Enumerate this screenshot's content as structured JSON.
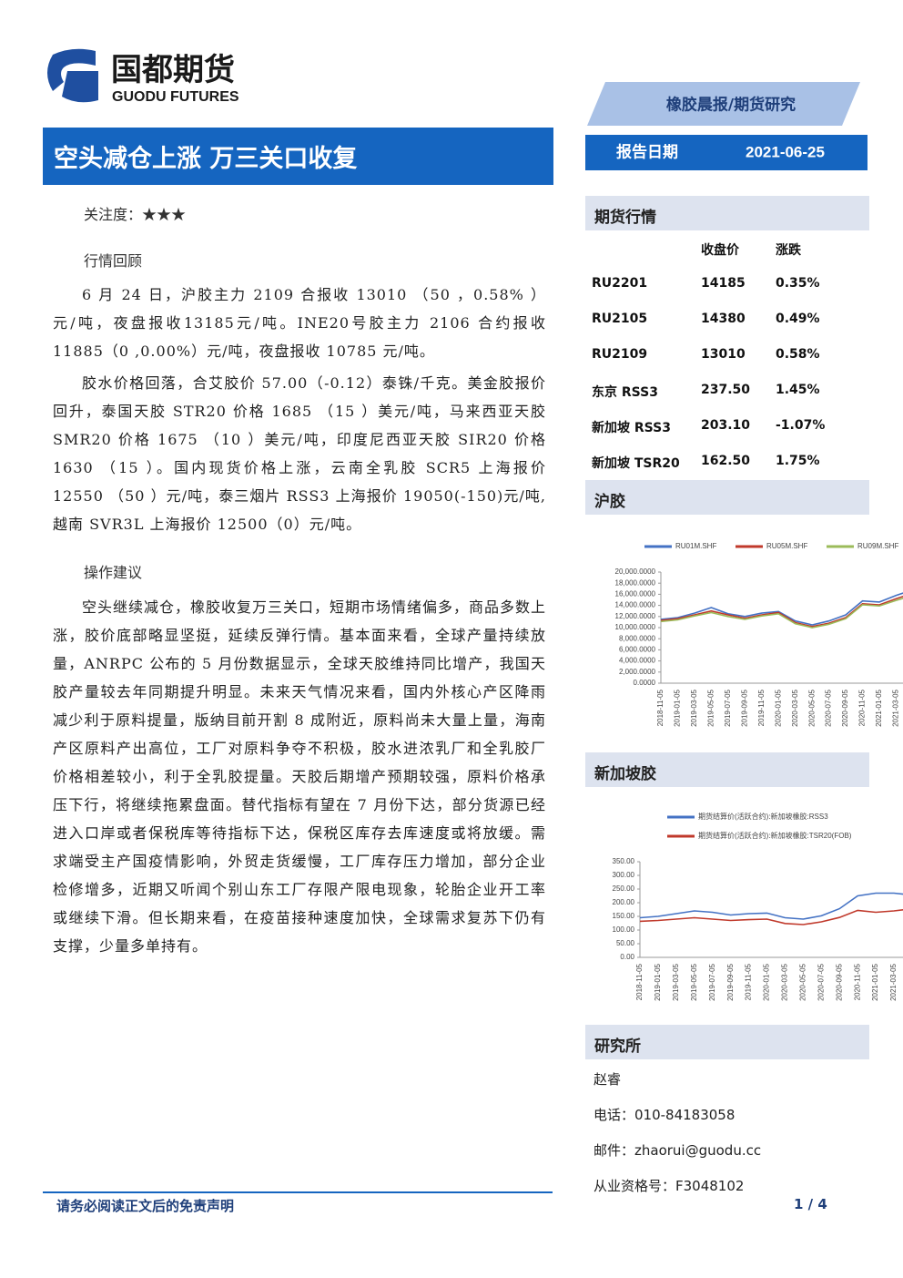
{
  "header": {
    "logo_cn": "国都期货",
    "logo_en": "GUODU FUTURES",
    "category": "橡胶晨报/期货研究",
    "date_label": "报告日期",
    "date": "2021-06-25"
  },
  "title": "空头减仓上涨 万三关口收复",
  "attention": "关注度：★★★",
  "review": {
    "heading": "行情回顾",
    "paragraphs": [
      "6 月 24 日，沪胶主力 2109 合报收 13010 （50 ，0.58% ）元/吨，夜盘报收13185元/吨。INE20号胶主力 2106 合约报收 11885（0 ,0.00%）元/吨，夜盘报收 10785 元/吨。",
      "胶水价格回落，合艾胶价 57.00（-0.12）泰铢/千克。美金胶报价回升，泰国天胶 STR20 价格 1685 （15 ）美元/吨，马来西亚天胶 SMR20 价格 1675 （10 ）美元/吨，印度尼西亚天胶 SIR20 价格 1630 （15 ）。国内现货价格上涨，云南全乳胶 SCR5 上海报价 12550 （50 ）元/吨，泰三烟片 RSS3 上海报价 19050(-150)元/吨,越南 SVR3L 上海报价 12500（0）元/吨。"
    ]
  },
  "advice": {
    "heading": "操作建议",
    "paragraphs": [
      "空头继续减仓，橡胶收复万三关口，短期市场情绪偏多，商品多数上涨，胶价底部略显坚挺，延续反弹行情。基本面来看，全球产量持续放量，ANRPC 公布的 5 月份数据显示，全球天胶维持同比增产，我国天胶产量较去年同期提升明显。未来天气情况来看，国内外核心产区降雨减少利于原料提量，版纳目前开割 8 成附近，原料尚未大量上量，海南产区原料产出高位，工厂对原料争夺不积极，胶水进浓乳厂和全乳胶厂价格相差较小，利于全乳胶提量。天胶后期增产预期较强，原料价格承压下行，将继续拖累盘面。替代指标有望在 7 月份下达，部分货源已经进入口岸或者保税库等待指标下达，保税区库存去库速度或将放缓。需求端受主产国疫情影响，外贸走货缓慢，工厂库存压力增加，部分企业检修增多，近期又听闻个别山东工厂存限产限电现象，轮胎企业开工率或继续下滑。但长期来看，在疫苗接种速度加快，全球需求复苏下仍有支撑，少量多单持有。"
    ]
  },
  "market": {
    "title": "期货行情",
    "columns": [
      "收盘价",
      "涨跌"
    ],
    "rows": [
      [
        "RU2201",
        "14185",
        "0.35%"
      ],
      [
        "RU2105",
        "14380",
        "0.49%"
      ],
      [
        "RU2109",
        "13010",
        "0.58%"
      ],
      [
        "东京 RSS3",
        "237.50",
        "1.45%"
      ],
      [
        "新加坡 RSS3",
        "203.10",
        "-1.07%"
      ],
      [
        "新加坡 TSR20",
        "162.50",
        "1.75%"
      ]
    ]
  },
  "shfe_label": "沪胶",
  "sgx_label": "新加坡胶",
  "chart_data": [
    {
      "type": "line",
      "categories": [
        "2018-11-05",
        "2019-01-05",
        "2019-03-05",
        "2019-05-05",
        "2019-07-05",
        "2019-09-05",
        "2019-11-05",
        "2020-01-05",
        "2020-03-05",
        "2020-05-05",
        "2020-07-05",
        "2020-09-05",
        "2020-11-05",
        "2021-01-05",
        "2021-03-05",
        null
      ],
      "series": [
        {
          "name": "RU01M.SHF",
          "color": "#4472c4",
          "values": [
            11500,
            11800,
            12600,
            13600,
            12500,
            12000,
            12600,
            12900,
            11200,
            10500,
            11200,
            12300,
            14800,
            14600,
            15800,
            16800
          ]
        },
        {
          "name": "RU05M.SHF",
          "color": "#c0392b",
          "values": [
            11300,
            11600,
            12300,
            13000,
            12300,
            11700,
            12300,
            12700,
            10900,
            10200,
            10800,
            11800,
            14300,
            14100,
            15200,
            16200
          ]
        },
        {
          "name": "RU09M.SHF",
          "color": "#9bbb59",
          "values": [
            11100,
            11400,
            12100,
            12700,
            12000,
            11500,
            12100,
            12500,
            10700,
            10000,
            10600,
            11600,
            14100,
            13900,
            14900,
            15800
          ]
        }
      ],
      "ylim": [
        0,
        20000
      ],
      "yticks": [
        {
          "value": 0,
          "label": "0.0000"
        },
        {
          "value": 2000,
          "label": "2,000.0000"
        },
        {
          "value": 4000,
          "label": "4,000.0000"
        },
        {
          "value": 6000,
          "label": "6,000.0000"
        },
        {
          "value": 8000,
          "label": "8,000.0000"
        },
        {
          "value": 10000,
          "label": "10,000.0000"
        },
        {
          "value": 12000,
          "label": "12,000.0000"
        },
        {
          "value": 14000,
          "label": "14,000.0000"
        },
        {
          "value": 16000,
          "label": "16,000.0000"
        },
        {
          "value": 18000,
          "label": "18,000.0000"
        },
        {
          "value": 20000,
          "label": "20,000.0000"
        }
      ]
    },
    {
      "type": "line",
      "categories": [
        "2018-11-05",
        "2019-01-05",
        "2019-03-05",
        "2019-05-05",
        "2019-07-05",
        "2019-09-05",
        "2019-11-05",
        "2020-01-05",
        "2020-03-05",
        "2020-05-05",
        "2020-07-05",
        "2020-09-05",
        "2020-11-05",
        "2021-01-05",
        "2021-03-05",
        null
      ],
      "series": [
        {
          "name": "期货结算价(活跃合约):新加坡橡胶:RSS3",
          "color": "#4472c4",
          "values": [
            145,
            150,
            160,
            170,
            165,
            155,
            160,
            162,
            145,
            140,
            152,
            178,
            225,
            235,
            235,
            228
          ]
        },
        {
          "name": "期货结算价(活跃合约):新加坡橡胶:TSR20(FOB)",
          "color": "#c0392b",
          "values": [
            132,
            135,
            140,
            145,
            140,
            135,
            138,
            140,
            124,
            120,
            130,
            146,
            172,
            165,
            170,
            178
          ]
        }
      ],
      "ylim": [
        0,
        350
      ],
      "yticks": [
        {
          "value": 0,
          "label": "0.00"
        },
        {
          "value": 50,
          "label": "50.00"
        },
        {
          "value": 100,
          "label": "100.00"
        },
        {
          "value": 150,
          "label": "150.00"
        },
        {
          "value": 200,
          "label": "200.00"
        },
        {
          "value": 250,
          "label": "250.00"
        },
        {
          "value": 300,
          "label": "300.00"
        },
        {
          "value": 350,
          "label": "350.00"
        }
      ]
    }
  ],
  "research": {
    "title": "研究所",
    "lines": [
      "赵睿",
      "电话：010-84183058",
      "邮件：zhaorui@guodu.cc",
      "从业资格号：F3048102"
    ]
  },
  "footer": {
    "disclaimer": "请务必阅读正文后的免责声明",
    "page": "1 / 4"
  }
}
